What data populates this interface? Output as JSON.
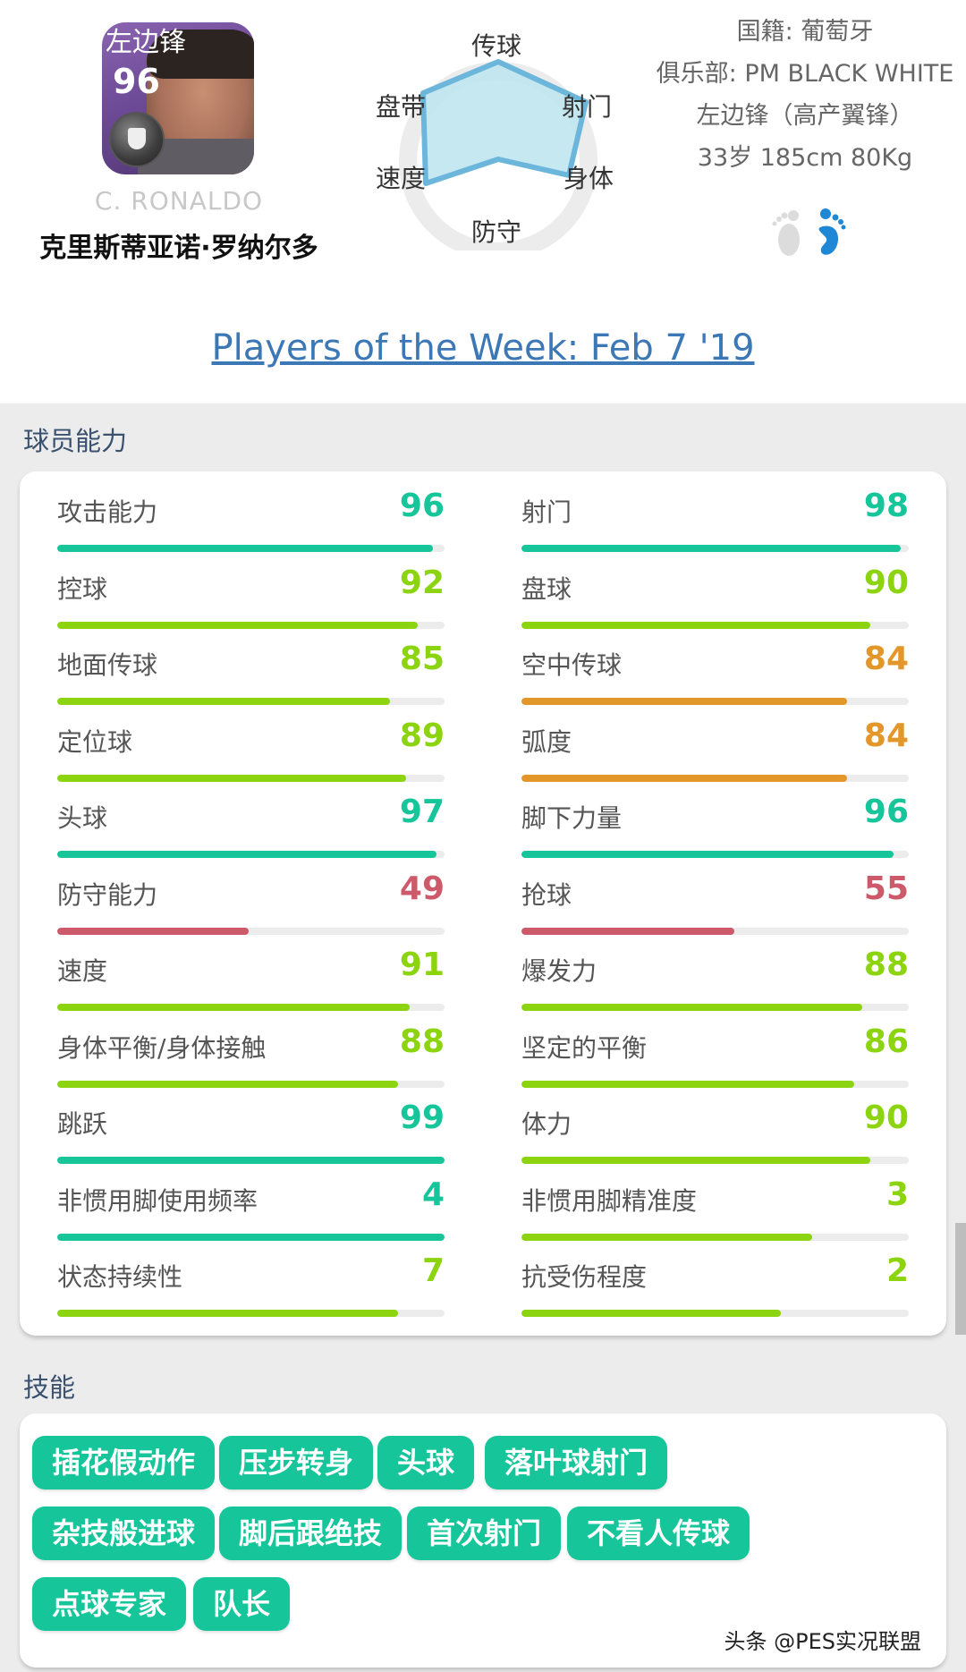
{
  "player": {
    "position_short": "左边锋",
    "overall": "96",
    "name_en": "C. RONALDO",
    "name_cn": "克里斯蒂亚诺·罗纳尔多",
    "nationality": "国籍: 葡萄牙",
    "club": "俱乐部: PM BLACK WHITE",
    "position_style": "左边锋（高产翼锋）",
    "physical": "33岁 185cm 80Kg",
    "preferred_foot": "right",
    "foot_colors": {
      "active": "#1e88d6",
      "inactive": "#dcdcdc"
    }
  },
  "radar": {
    "labels": {
      "top": "传球",
      "top_right": "射门",
      "bottom_right": "身体",
      "bottom": "防守",
      "bottom_left": "速度",
      "top_left": "盘带"
    }
  },
  "chart_data": {
    "type": "radar",
    "axes": [
      "传球",
      "射门",
      "身体",
      "防守",
      "速度",
      "盘带"
    ],
    "values": [
      88,
      97,
      86,
      50,
      90,
      89
    ],
    "range": [
      0,
      100
    ],
    "fill_color": "#bfe6f0",
    "stroke_color": "#6cb6dc"
  },
  "event_link": "Players of the Week: Feb 7 '19",
  "abilities": {
    "title": "球员能力",
    "left": [
      {
        "label": "攻击能力",
        "value": "96",
        "pct": 97,
        "color": "#17c59a"
      },
      {
        "label": "控球",
        "value": "92",
        "pct": 93,
        "color": "#8cd40f"
      },
      {
        "label": "地面传球",
        "value": "85",
        "pct": 86,
        "color": "#8cd40f"
      },
      {
        "label": "定位球",
        "value": "89",
        "pct": 90,
        "color": "#8cd40f"
      },
      {
        "label": "头球",
        "value": "97",
        "pct": 98,
        "color": "#17c59a"
      },
      {
        "label": "防守能力",
        "value": "49",
        "pct": 49.5,
        "color": "#cc5a6a"
      },
      {
        "label": "速度",
        "value": "91",
        "pct": 91,
        "color": "#8cd40f"
      },
      {
        "label": "身体平衡/身体接触",
        "value": "88",
        "pct": 88,
        "color": "#8cd40f"
      },
      {
        "label": "跳跃",
        "value": "99",
        "pct": 100,
        "color": "#17c59a"
      },
      {
        "label": "非惯用脚使用频率",
        "value": "4",
        "pct": 100,
        "color": "#17c59a"
      },
      {
        "label": "状态持续性",
        "value": "7",
        "pct": 88,
        "color": "#8cd40f"
      }
    ],
    "right": [
      {
        "label": "射门",
        "value": "98",
        "pct": 98,
        "color": "#17c59a"
      },
      {
        "label": "盘球",
        "value": "90",
        "pct": 90,
        "color": "#8cd40f"
      },
      {
        "label": "空中传球",
        "value": "84",
        "pct": 84,
        "color": "#e3972a"
      },
      {
        "label": "弧度",
        "value": "84",
        "pct": 84,
        "color": "#e3972a"
      },
      {
        "label": "脚下力量",
        "value": "96",
        "pct": 96,
        "color": "#17c59a"
      },
      {
        "label": "抢球",
        "value": "55",
        "pct": 55,
        "color": "#cc5a6a"
      },
      {
        "label": "爆发力",
        "value": "88",
        "pct": 88,
        "color": "#8cd40f"
      },
      {
        "label": "坚定的平衡",
        "value": "86",
        "pct": 86,
        "color": "#8cd40f"
      },
      {
        "label": "体力",
        "value": "90",
        "pct": 90,
        "color": "#8cd40f"
      },
      {
        "label": "非惯用脚精准度",
        "value": "3",
        "pct": 75,
        "color": "#8cd40f"
      },
      {
        "label": "抗受伤程度",
        "value": "2",
        "pct": 67,
        "color": "#8cd40f"
      }
    ]
  },
  "skills": {
    "title": "技能",
    "items": [
      "插花假动作",
      "压步转身",
      "头球",
      "落叶球射门",
      "杂技般进球",
      "脚后跟绝技",
      "首次射门",
      "不看人传球",
      "点球专家",
      "队长"
    ],
    "color": "#17c59a"
  },
  "watermark": "头条 @PES实况联盟"
}
